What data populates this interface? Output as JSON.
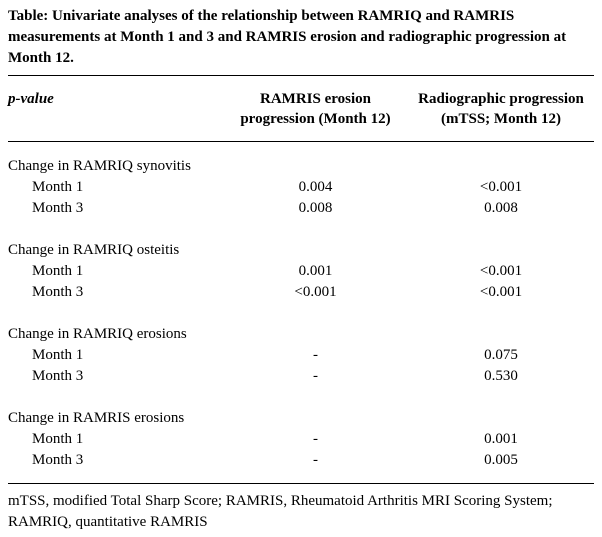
{
  "title": "Table: Univariate analyses of the relationship between RAMRIQ and RAMRIS measurements at Month 1 and 3 and RAMRIS erosion and radiographic progression at Month 12.",
  "table": {
    "header": {
      "col1": "p-value",
      "col2": "RAMRIS erosion progression (Month 12)",
      "col3": "Radiographic progression (mTSS; Month 12)"
    },
    "groups": [
      {
        "label": "Change in RAMRIQ synovitis",
        "rows": [
          {
            "label": "Month 1",
            "col2": "0.004",
            "col3": "<0.001"
          },
          {
            "label": "Month 3",
            "col2": "0.008",
            "col3": "0.008"
          }
        ]
      },
      {
        "label": "Change in RAMRIQ osteitis",
        "rows": [
          {
            "label": "Month 1",
            "col2": "0.001",
            "col3": "<0.001"
          },
          {
            "label": "Month 3",
            "col2": "<0.001",
            "col3": "<0.001"
          }
        ]
      },
      {
        "label": "Change in RAMRIQ erosions",
        "rows": [
          {
            "label": "Month 1",
            "col2": "-",
            "col3": "0.075"
          },
          {
            "label": "Month 3",
            "col2": "-",
            "col3": "0.530"
          }
        ]
      },
      {
        "label": "Change in RAMRIS erosions",
        "rows": [
          {
            "label": "Month 1",
            "col2": "-",
            "col3": "0.001"
          },
          {
            "label": "Month 3",
            "col2": "-",
            "col3": "0.005"
          }
        ]
      }
    ],
    "footnote": "mTSS, modified Total Sharp Score; RAMRIS, Rheumatoid Arthritis MRI Scoring System; RAMRIQ, quantitative RAMRIS"
  }
}
